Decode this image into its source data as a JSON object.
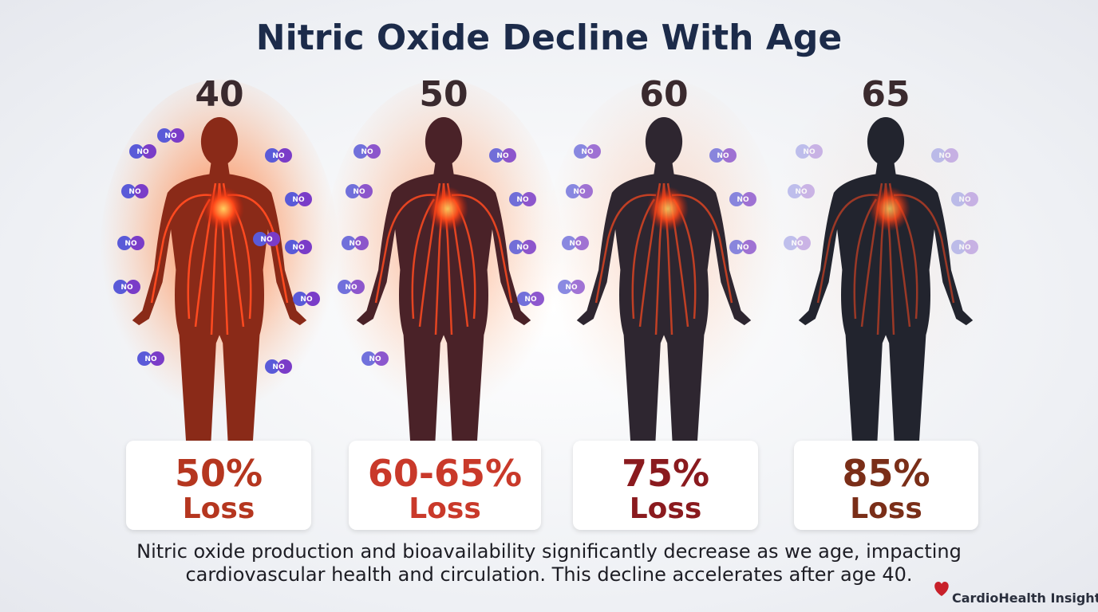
{
  "title": "Nitric Oxide Decline With Age",
  "panels": [
    {
      "age": "40",
      "loss": "50%",
      "label": "Loss"
    },
    {
      "age": "50",
      "loss": "60-65%",
      "label": "Loss"
    },
    {
      "age": "60",
      "loss": "75%",
      "label": "Loss"
    },
    {
      "age": "65",
      "loss": "85%",
      "label": "Loss"
    }
  ],
  "molecule_label": "NO",
  "caption": [
    "Nitric oxide production and bioavailability significantly decrease as we age, impacting",
    "cardiovascular health and circulation. This decline accelerates after age 40."
  ],
  "brand": "CardioHealth Insights"
}
